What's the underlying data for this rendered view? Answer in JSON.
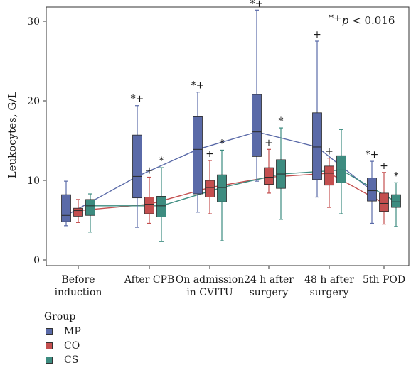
{
  "chart_data": {
    "type": "box",
    "ylabel": "Leukocytes, G/L",
    "ylim": [
      0,
      32
    ],
    "yticks": [
      0,
      10,
      20,
      30
    ],
    "grid": false,
    "legend_position": "bottom-left",
    "legend_title": "Group",
    "annotation": {
      "symbols": "*+",
      "text": "p < 0.016",
      "p_prefix": "p",
      "p_rest": " < 0.016"
    },
    "categories": [
      [
        "Before",
        "induction"
      ],
      [
        "After CPB"
      ],
      [
        "On admission",
        "in CVITU"
      ],
      [
        "24 h after",
        "surgery"
      ],
      [
        "48 h after",
        "surgery"
      ],
      [
        "5th POD"
      ]
    ],
    "series": [
      {
        "name": "MP",
        "color": "#5a6aa8",
        "boxes": [
          {
            "min": 4.3,
            "q1": 4.8,
            "median": 5.6,
            "q3": 8.2,
            "max": 9.9,
            "marker": ""
          },
          {
            "min": 4.1,
            "q1": 7.8,
            "median": 10.5,
            "q3": 15.7,
            "max": 19.4,
            "marker": "*+"
          },
          {
            "min": 6.0,
            "q1": 8.3,
            "median": 13.9,
            "q3": 18.0,
            "max": 21.1,
            "marker": "*+"
          },
          {
            "min": 9.9,
            "q1": 13.0,
            "median": 16.1,
            "q3": 20.8,
            "max": 31.4,
            "marker": "*+"
          },
          {
            "min": 7.9,
            "q1": 10.1,
            "median": 14.2,
            "q3": 18.5,
            "max": 27.5,
            "marker": "+"
          },
          {
            "min": 4.6,
            "q1": 7.4,
            "median": 8.7,
            "q3": 10.3,
            "max": 12.4,
            "marker": "*+"
          }
        ]
      },
      {
        "name": "CO",
        "color": "#c44f4f",
        "boxes": [
          {
            "min": 4.7,
            "q1": 5.5,
            "median": 6.2,
            "q3": 6.5,
            "max": 7.6,
            "marker": ""
          },
          {
            "min": 4.6,
            "q1": 5.8,
            "median": 7.0,
            "q3": 7.9,
            "max": 10.4,
            "marker": "+"
          },
          {
            "min": 5.8,
            "q1": 7.9,
            "median": 9.1,
            "q3": 10.0,
            "max": 12.5,
            "marker": "+"
          },
          {
            "min": 8.4,
            "q1": 9.5,
            "median": 10.4,
            "q3": 11.6,
            "max": 13.9,
            "marker": "+"
          },
          {
            "min": 6.6,
            "q1": 9.4,
            "median": 10.9,
            "q3": 11.8,
            "max": 12.8,
            "marker": "+"
          },
          {
            "min": 4.5,
            "q1": 6.1,
            "median": 7.1,
            "q3": 8.4,
            "max": 11.0,
            "marker": "+"
          }
        ]
      },
      {
        "name": "CS",
        "color": "#3d8c80",
        "boxes": [
          {
            "min": 3.5,
            "q1": 5.6,
            "median": 6.8,
            "q3": 7.6,
            "max": 8.3,
            "marker": ""
          },
          {
            "min": 2.3,
            "q1": 5.4,
            "median": 6.8,
            "q3": 8.0,
            "max": 11.6,
            "marker": "*"
          },
          {
            "min": 2.4,
            "q1": 7.3,
            "median": 9.1,
            "q3": 10.7,
            "max": 13.8,
            "marker": "*"
          },
          {
            "min": 5.1,
            "q1": 9.0,
            "median": 10.8,
            "q3": 12.6,
            "max": 16.6,
            "marker": "*"
          },
          {
            "min": 5.8,
            "q1": 9.7,
            "median": 11.3,
            "q3": 13.1,
            "max": 16.4,
            "marker": ""
          },
          {
            "min": 4.2,
            "q1": 6.6,
            "median": 7.3,
            "q3": 8.2,
            "max": 9.7,
            "marker": "*"
          }
        ]
      }
    ]
  }
}
